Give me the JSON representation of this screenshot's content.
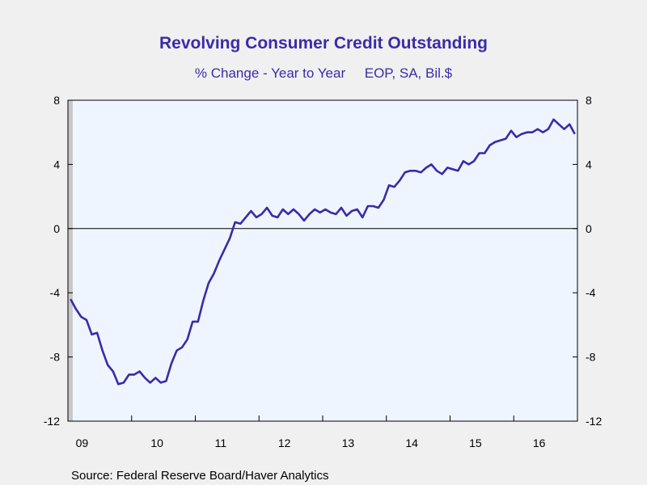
{
  "chart_data": {
    "type": "line",
    "title": "Revolving Consumer Credit Outstanding",
    "subtitle": "% Change - Year to Year     EOP, SA, Bil.$",
    "source": "Source:  Federal Reserve Board/Haver Analytics",
    "ylim": [
      -12,
      8
    ],
    "yticks": [
      "8",
      "4",
      "0",
      "-4",
      "-8",
      "-12"
    ],
    "xtick_labels": [
      "09",
      "10",
      "11",
      "12",
      "13",
      "14",
      "15",
      "16"
    ],
    "recession_shading": {
      "from": "2009-01",
      "to": "2009-06"
    },
    "colors": {
      "line": "#3b2aa8",
      "plot_bg": "#eef5ff",
      "recession": "#c8c8c8",
      "title": "#3a2ca8"
    },
    "series": [
      {
        "x": [
          "2009-01",
          "2009-02",
          "2009-03",
          "2009-04",
          "2009-05",
          "2009-06",
          "2009-07",
          "2009-08",
          "2009-09",
          "2009-10",
          "2009-11",
          "2009-12",
          "2010-01",
          "2010-02",
          "2010-03",
          "2010-04",
          "2010-05",
          "2010-06",
          "2010-07",
          "2010-08",
          "2010-09",
          "2010-10",
          "2010-11",
          "2010-12",
          "2011-01",
          "2011-02",
          "2011-03",
          "2011-04",
          "2011-05",
          "2011-06",
          "2011-07",
          "2011-08",
          "2011-09",
          "2011-10",
          "2011-11",
          "2011-12",
          "2012-01",
          "2012-02",
          "2012-03",
          "2012-04",
          "2012-05",
          "2012-06",
          "2012-07",
          "2012-08",
          "2012-09",
          "2012-10",
          "2012-11",
          "2012-12",
          "2013-01",
          "2013-02",
          "2013-03",
          "2013-04",
          "2013-05",
          "2013-06",
          "2013-07",
          "2013-08",
          "2013-09",
          "2013-10",
          "2013-11",
          "2013-12",
          "2014-01",
          "2014-02",
          "2014-03",
          "2014-04",
          "2014-05",
          "2014-06",
          "2014-07",
          "2014-08",
          "2014-09",
          "2014-10",
          "2014-11",
          "2014-12",
          "2015-01",
          "2015-02",
          "2015-03",
          "2015-04",
          "2015-05",
          "2015-06",
          "2015-07",
          "2015-08",
          "2015-09",
          "2015-10",
          "2015-11",
          "2015-12",
          "2016-01",
          "2016-02",
          "2016-03",
          "2016-04",
          "2016-05",
          "2016-06",
          "2016-07",
          "2016-08",
          "2016-09",
          "2016-10",
          "2016-11",
          "2016-12"
        ],
        "values": [
          -4.4,
          -5.0,
          -5.5,
          -5.7,
          -6.6,
          -6.5,
          -7.6,
          -8.5,
          -8.9,
          -9.7,
          -9.6,
          -9.1,
          -9.1,
          -8.9,
          -9.3,
          -9.6,
          -9.3,
          -9.6,
          -9.5,
          -8.4,
          -7.6,
          -7.4,
          -6.9,
          -5.8,
          -5.8,
          -4.5,
          -3.4,
          -2.8,
          -2.0,
          -1.3,
          -0.6,
          0.4,
          0.3,
          0.7,
          1.1,
          0.7,
          0.9,
          1.3,
          0.8,
          0.7,
          1.2,
          0.9,
          1.2,
          0.9,
          0.5,
          0.9,
          1.2,
          1.0,
          1.2,
          1.0,
          0.9,
          1.3,
          0.8,
          1.1,
          1.2,
          0.7,
          1.4,
          1.4,
          1.3,
          1.8,
          2.7,
          2.6,
          3.0,
          3.5,
          3.6,
          3.6,
          3.5,
          3.8,
          4.0,
          3.6,
          3.4,
          3.8,
          3.7,
          3.6,
          4.2,
          4.0,
          4.2,
          4.7,
          4.7,
          5.2,
          5.4,
          5.5,
          5.6,
          6.1,
          5.7,
          5.9,
          6.0,
          6.0,
          6.2,
          6.0,
          6.2,
          6.8,
          6.5,
          6.2,
          6.5,
          5.9
        ]
      }
    ]
  }
}
